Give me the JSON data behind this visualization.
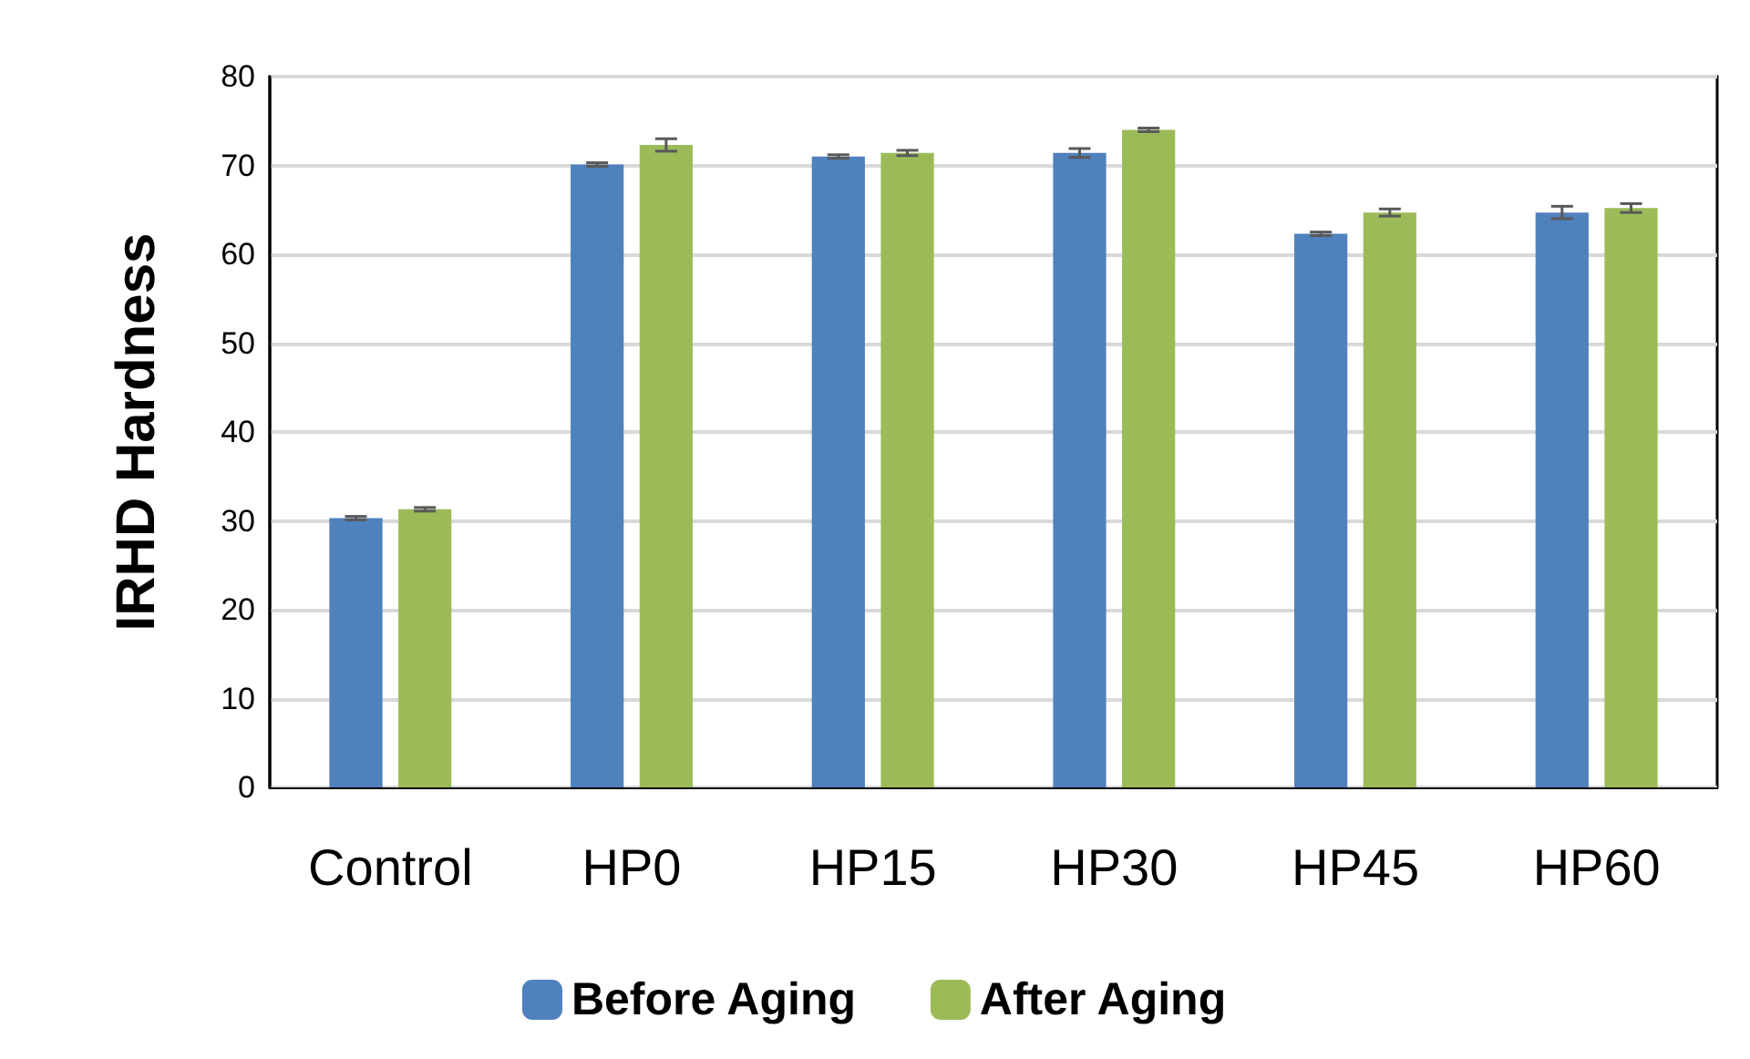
{
  "chart_data": {
    "type": "bar",
    "ylabel": "IRHD Hardness",
    "categories": [
      "Control",
      "HP0",
      "HP15",
      "HP30",
      "HP45",
      "HP60"
    ],
    "series": [
      {
        "name": "Before Aging",
        "color": "#4f81bd",
        "values": [
          30.3,
          70.1,
          71.0,
          71.4,
          62.3,
          64.7
        ],
        "errors": [
          0.2,
          0.2,
          0.2,
          0.5,
          0.2,
          0.7
        ]
      },
      {
        "name": "After Aging",
        "color": "#9bbb59",
        "values": [
          31.3,
          72.3,
          71.4,
          74.0,
          64.7,
          65.2
        ],
        "errors": [
          0.2,
          0.7,
          0.3,
          0.2,
          0.4,
          0.5
        ]
      }
    ],
    "ylim": [
      0,
      80
    ],
    "yticks": [
      0,
      10,
      20,
      30,
      40,
      50,
      60,
      70,
      80
    ],
    "grid": "y",
    "legend": "bottom"
  }
}
